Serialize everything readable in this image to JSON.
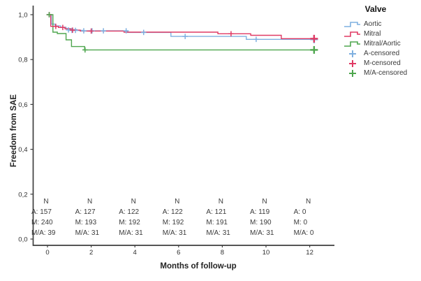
{
  "chart_data": {
    "type": "line",
    "subtype": "kaplan-meier-step",
    "title": "",
    "xlabel": "Months of follow-up",
    "ylabel": "Freedom from SAE",
    "xlim": [
      -0.4,
      13.2
    ],
    "ylim": [
      0.0,
      1.05
    ],
    "grid": false,
    "x_ticks": [
      {
        "v": 0,
        "label": "0"
      },
      {
        "v": 2,
        "label": "2"
      },
      {
        "v": 4,
        "label": "4"
      },
      {
        "v": 6,
        "label": "6"
      },
      {
        "v": 8,
        "label": "8"
      },
      {
        "v": 10,
        "label": "10"
      },
      {
        "v": 12,
        "label": "12"
      }
    ],
    "y_ticks": [
      {
        "v": 1.0,
        "label": "1,0"
      },
      {
        "v": 0.8,
        "label": "0,8"
      },
      {
        "v": 0.6,
        "label": "0,6"
      },
      {
        "v": 0.4,
        "label": "0,4"
      },
      {
        "v": 0.2,
        "label": "0,2"
      },
      {
        "v": 0.0,
        "label": "0,0"
      }
    ],
    "legend": {
      "title": "Valve",
      "position": "right",
      "entries": [
        {
          "label": "Aortic",
          "color": "#7FB0E0",
          "type": "step"
        },
        {
          "label": "Mitral",
          "color": "#E03A64",
          "type": "step"
        },
        {
          "label": "Mitral/Aortic",
          "color": "#4EA64E",
          "type": "step"
        },
        {
          "label": "A-censored",
          "color": "#7FB0E0",
          "type": "plus"
        },
        {
          "label": "M-censored",
          "color": "#E03A64",
          "type": "plus"
        },
        {
          "label": "M/A-censored",
          "color": "#4EA64E",
          "type": "plus"
        }
      ]
    },
    "series": [
      {
        "name": "Aortic",
        "color": "#7FB0E0",
        "step_points": [
          [
            0.08,
            1.0
          ],
          [
            0.18,
            0.958
          ],
          [
            0.35,
            0.95
          ],
          [
            0.6,
            0.944
          ],
          [
            0.85,
            0.938
          ],
          [
            1.05,
            0.933
          ],
          [
            1.35,
            0.93
          ],
          [
            1.6,
            0.928
          ],
          [
            3.67,
            0.921
          ],
          [
            5.65,
            0.903
          ],
          [
            9.1,
            0.89
          ],
          [
            12.2,
            0.89
          ]
        ]
      },
      {
        "name": "Mitral",
        "color": "#E03A64",
        "step_points": [
          [
            0.08,
            1.0
          ],
          [
            0.15,
            0.948
          ],
          [
            0.5,
            0.943
          ],
          [
            0.8,
            0.937
          ],
          [
            1.1,
            0.931
          ],
          [
            1.5,
            0.927
          ],
          [
            3.5,
            0.922
          ],
          [
            7.8,
            0.915
          ],
          [
            9.3,
            0.908
          ],
          [
            10.7,
            0.893
          ],
          [
            12.2,
            0.893
          ]
        ]
      },
      {
        "name": "Mitral/Aortic",
        "color": "#4EA64E",
        "step_points": [
          [
            0.08,
            1.0
          ],
          [
            0.25,
            0.922
          ],
          [
            0.45,
            0.916
          ],
          [
            0.85,
            0.888
          ],
          [
            1.1,
            0.858
          ],
          [
            1.7,
            0.843
          ],
          [
            12.2,
            0.843
          ]
        ]
      }
    ],
    "censored": [
      {
        "name": "A-censored",
        "color": "#7FB0E0",
        "points": [
          [
            0.08,
            1.0
          ],
          [
            0.96,
            0.932
          ],
          [
            1.12,
            0.93
          ],
          [
            1.28,
            0.93
          ],
          [
            1.66,
            0.928
          ],
          [
            2.04,
            0.928
          ],
          [
            2.56,
            0.928
          ],
          [
            3.6,
            0.928
          ],
          [
            4.4,
            0.921
          ],
          [
            6.3,
            0.903
          ],
          [
            9.55,
            0.89
          ],
          [
            12.2,
            0.89
          ]
        ]
      },
      {
        "name": "M-censored",
        "color": "#E03A64",
        "points": [
          [
            0.08,
            1.0
          ],
          [
            0.38,
            0.948
          ],
          [
            0.7,
            0.943
          ],
          [
            1.15,
            0.931
          ],
          [
            2.0,
            0.927
          ],
          [
            8.4,
            0.915
          ],
          [
            12.2,
            0.893
          ]
        ]
      },
      {
        "name": "M/A-censored",
        "color": "#4EA64E",
        "points": [
          [
            0.08,
            1.0
          ],
          [
            1.72,
            0.843
          ],
          [
            12.2,
            0.843
          ]
        ]
      }
    ],
    "risk_table": {
      "header": "N",
      "months": [
        0,
        2,
        4,
        6,
        8,
        10,
        12
      ],
      "rows": [
        {
          "label": "A:",
          "values": [
            "157",
            "127",
            "122",
            "122",
            "121",
            "119",
            "0"
          ]
        },
        {
          "label": "M:",
          "values": [
            "240",
            "193",
            "192",
            "192",
            "191",
            "190",
            "0"
          ]
        },
        {
          "label": "M/A:",
          "values": [
            "39",
            "31",
            "31",
            "31",
            "31",
            "31",
            "0"
          ]
        }
      ]
    },
    "axis_color": "#3f3f3f",
    "tick_label_color": "#2e2e2e",
    "risk_text_color": "#3b3b3b"
  }
}
